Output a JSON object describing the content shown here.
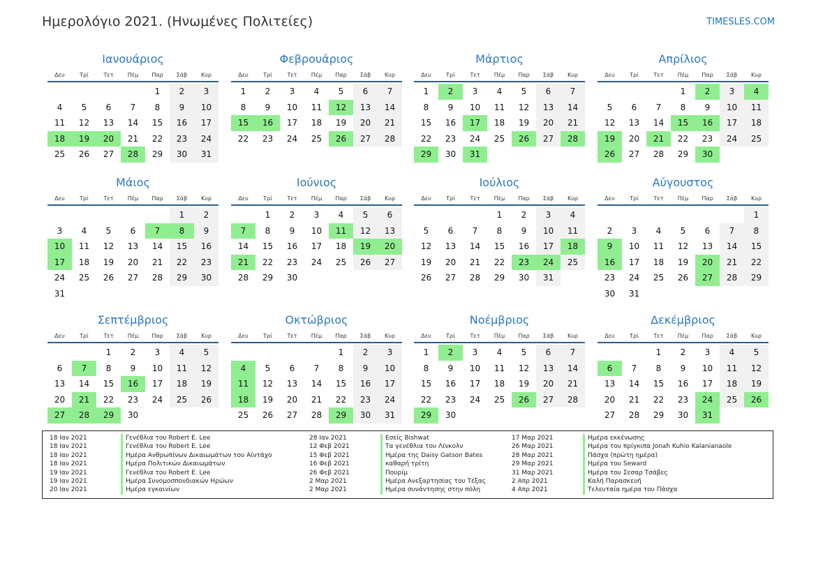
{
  "title": "Ημερολόγιο 2021. (Ηνωμένες Πολιτείες)",
  "site": "TIMESLES.COM",
  "weekdays": [
    "Δευ",
    "Τρί",
    "Τετ",
    "Πέμ",
    "Παρ",
    "Σάβ",
    "Κυρ"
  ],
  "colors": {
    "holiday": "#90ee90",
    "weekend": "#f1f1f1",
    "accent": "#2b78c0"
  },
  "months": [
    {
      "name": "Ιανουάριος",
      "offset": 4,
      "days": 31,
      "holidays": [
        18,
        19,
        20,
        28
      ]
    },
    {
      "name": "Φεβρουάριος",
      "offset": 0,
      "days": 28,
      "holidays": [
        12,
        15,
        16,
        26
      ]
    },
    {
      "name": "Μάρτιος",
      "offset": 0,
      "days": 31,
      "holidays": [
        2,
        17,
        26,
        28,
        29,
        31
      ]
    },
    {
      "name": "Απρίλιος",
      "offset": 3,
      "days": 30,
      "holidays": [
        2,
        4,
        15,
        16,
        19,
        21,
        26,
        30
      ]
    },
    {
      "name": "Μάιος",
      "offset": 5,
      "days": 31,
      "holidays": [
        7,
        8,
        10,
        17
      ]
    },
    {
      "name": "Ιούνιος",
      "offset": 1,
      "days": 30,
      "holidays": [
        7,
        11,
        19,
        20,
        21
      ]
    },
    {
      "name": "Ιούλιος",
      "offset": 3,
      "days": 31,
      "holidays": [
        18,
        23,
        24
      ]
    },
    {
      "name": "Αύγουστος",
      "offset": 6,
      "days": 31,
      "holidays": [
        9,
        16,
        20,
        27
      ]
    },
    {
      "name": "Σεπτέμβριος",
      "offset": 2,
      "days": 30,
      "holidays": [
        7,
        16,
        21,
        27,
        28,
        29
      ]
    },
    {
      "name": "Οκτώβριος",
      "offset": 4,
      "days": 31,
      "holidays": [
        4,
        11,
        18,
        29
      ]
    },
    {
      "name": "Νοέμβριος",
      "offset": 0,
      "days": 30,
      "holidays": [
        2,
        26,
        29
      ]
    },
    {
      "name": "Δεκέμβριος",
      "offset": 2,
      "days": 31,
      "holidays": [
        6,
        24,
        26,
        31
      ]
    }
  ],
  "holiday_list": [
    [
      {
        "date": "18 Ιαν 2021",
        "name": "Γενέθλια του Robert E. Lee"
      },
      {
        "date": "18 Ιαν 2021",
        "name": "Γενέθλια του Robert E. Lee"
      },
      {
        "date": "18 Ιαν 2021",
        "name": "Ημέρα Ανθρωπίνων Δικαιωμάτων του Αϊντάχο"
      },
      {
        "date": "18 Ιαν 2021",
        "name": "Ημέρα Πολιτικών Δικαιωμάτων"
      },
      {
        "date": "19 Ιαν 2021",
        "name": "Γενέθλια του Robert E. Lee"
      },
      {
        "date": "19 Ιαν 2021",
        "name": "Ημέρα Συνομοσπονδιακών Ηρώων"
      },
      {
        "date": "20 Ιαν 2021",
        "name": "Ημέρα εγκαινίων"
      }
    ],
    [
      {
        "date": "28 Ιαν 2021",
        "name": "Εσείς Bishwat"
      },
      {
        "date": "12 Φεβ 2021",
        "name": "Τα γενέθλια του Λίνκολν"
      },
      {
        "date": "15 Φεβ 2021",
        "name": "Ημέρα της Daisy Gatson Bates"
      },
      {
        "date": "16 Φεβ 2021",
        "name": "καθαρή τρίτη"
      },
      {
        "date": "26 Φεβ 2021",
        "name": "Πουρίμ"
      },
      {
        "date": "2 Μαρ 2021",
        "name": "Ημέρα Ανεξαρτησίας του Τέξας"
      },
      {
        "date": "2 Μαρ 2021",
        "name": "Ημέρα συνάντησης στην πόλη"
      }
    ],
    [
      {
        "date": "17 Μαρ 2021",
        "name": "Ημέρα εκκένωσης"
      },
      {
        "date": "26 Μαρ 2021",
        "name": "Ημέρα του πρίγκιπα Jonah Kuhio Kalanianaole"
      },
      {
        "date": "28 Μαρ 2021",
        "name": "Πάσχα (πρώτη ημέρα)"
      },
      {
        "date": "29 Μαρ 2021",
        "name": "Ημέρα του Seward"
      },
      {
        "date": "31 Μαρ 2021",
        "name": "Ημέρα του Σεσαρ Τσάβες"
      },
      {
        "date": "2 Απρ 2021",
        "name": "Καλή Παρασκευή"
      },
      {
        "date": "4 Απρ 2021",
        "name": "Τελευταία ημέρα του Πάσχα"
      }
    ]
  ]
}
